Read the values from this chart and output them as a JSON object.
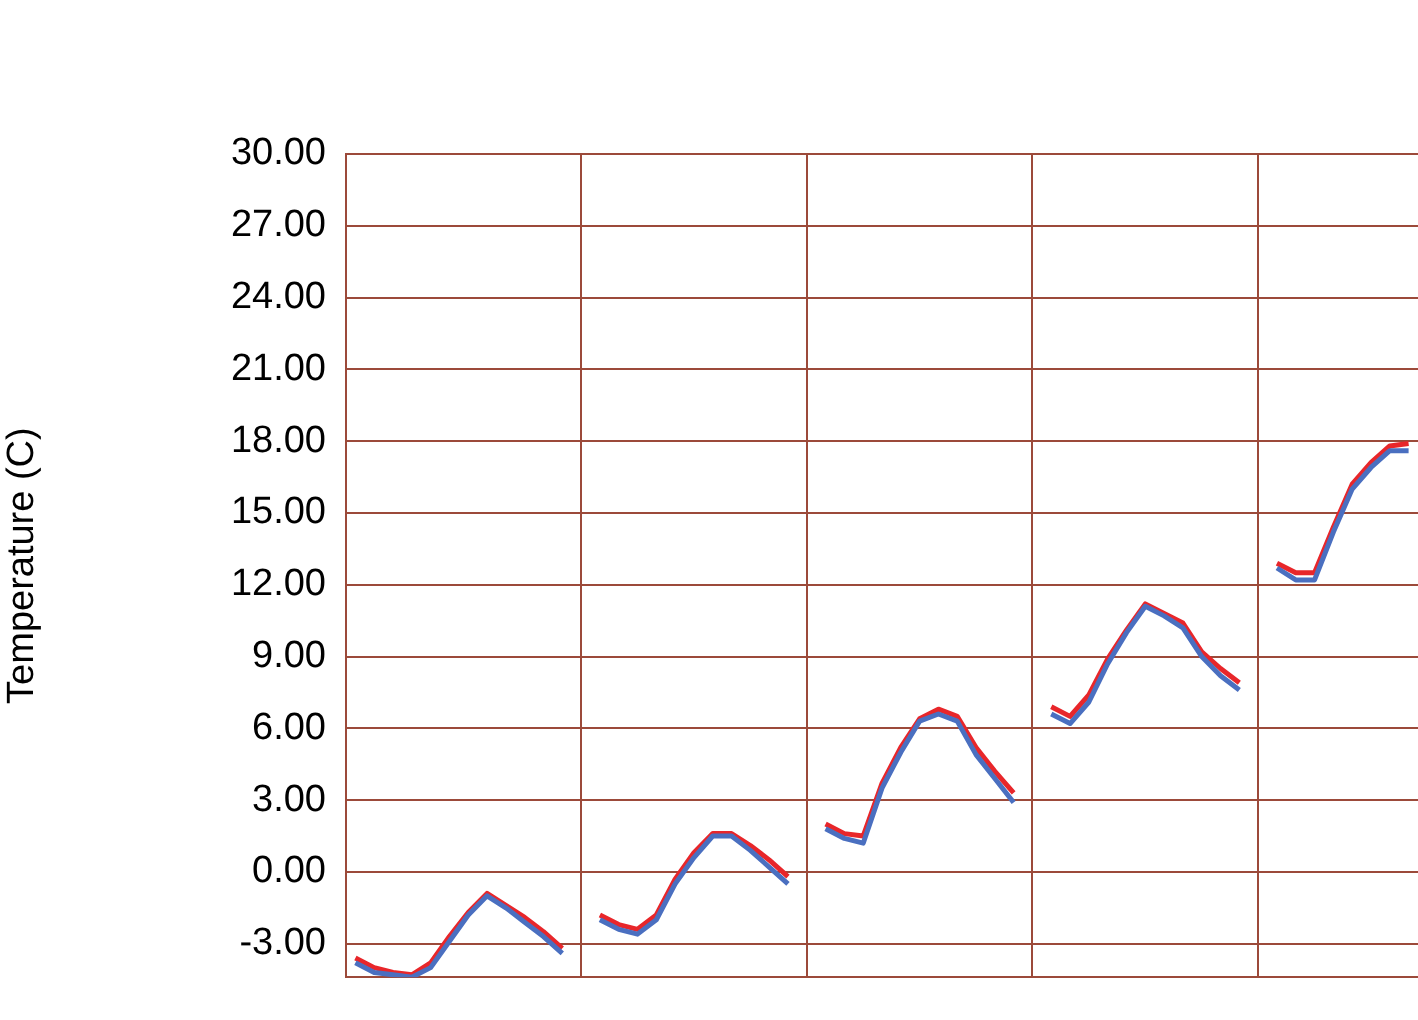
{
  "chart_data": {
    "type": "line",
    "ylabel": "Temperature (C)",
    "categories": [
      null,
      null,
      null,
      null,
      null,
      null,
      null,
      null,
      null,
      null,
      null,
      null,
      null,
      null,
      null,
      null,
      null,
      null,
      null,
      null,
      null,
      null,
      null,
      null,
      null,
      null,
      null,
      null,
      null,
      null,
      null,
      null,
      null,
      null,
      null,
      null,
      null,
      null,
      null,
      null,
      null,
      null,
      null,
      null,
      null,
      null,
      null,
      null,
      null,
      null,
      null,
      null,
      null,
      null,
      null,
      null,
      null
    ],
    "series": [
      {
        "color": "#4a6fc0",
        "values": [
          -3.8,
          -4.2,
          -4.3,
          -4.4,
          -4.0,
          -2.9,
          -1.8,
          -1.0,
          -1.5,
          -2.1,
          -2.7,
          -3.4,
          null,
          -2.0,
          -2.4,
          -2.6,
          -2.0,
          -0.5,
          0.6,
          1.5,
          1.5,
          0.9,
          0.2,
          -0.5,
          null,
          1.8,
          1.4,
          1.2,
          3.5,
          5.0,
          6.3,
          6.6,
          6.3,
          4.9,
          3.9,
          2.9,
          null,
          6.6,
          6.2,
          7.1,
          8.7,
          10.0,
          11.1,
          10.7,
          10.2,
          9.0,
          8.2,
          7.6,
          null,
          12.7,
          12.2,
          12.2,
          14.2,
          16.0,
          16.9,
          17.6,
          17.6
        ]
      },
      {
        "color": "#e8262a",
        "values": [
          -3.6,
          -4.0,
          -4.2,
          -4.3,
          -3.8,
          -2.7,
          -1.7,
          -0.9,
          -1.4,
          -1.9,
          -2.5,
          -3.2,
          null,
          -1.8,
          -2.2,
          -2.4,
          -1.8,
          -0.3,
          0.8,
          1.6,
          1.6,
          1.1,
          0.5,
          -0.2,
          null,
          2.0,
          1.6,
          1.5,
          3.7,
          5.2,
          6.4,
          6.8,
          6.5,
          5.2,
          4.2,
          3.3,
          null,
          6.9,
          6.5,
          7.4,
          8.9,
          10.1,
          11.2,
          10.8,
          10.4,
          9.2,
          8.5,
          7.9,
          null,
          12.9,
          12.5,
          12.5,
          14.4,
          16.2,
          17.1,
          17.8,
          17.9
        ]
      }
    ],
    "ylim": [
      -4.4,
      30
    ],
    "yticks": [
      {
        "value": -3,
        "label": "-3.00"
      },
      {
        "value": 0,
        "label": "0.00"
      },
      {
        "value": 3,
        "label": "3.00"
      },
      {
        "value": 6,
        "label": "6.00"
      },
      {
        "value": 9,
        "label": "9.00"
      },
      {
        "value": 12,
        "label": "12.00"
      },
      {
        "value": 15,
        "label": "15.00"
      },
      {
        "value": 18,
        "label": "18.00"
      },
      {
        "value": 21,
        "label": "21.00"
      },
      {
        "value": 24,
        "label": "24.00"
      },
      {
        "value": 27,
        "label": "27.00"
      },
      {
        "value": 30,
        "label": "30.00"
      }
    ],
    "grid": true,
    "tick_labels": "y"
  }
}
